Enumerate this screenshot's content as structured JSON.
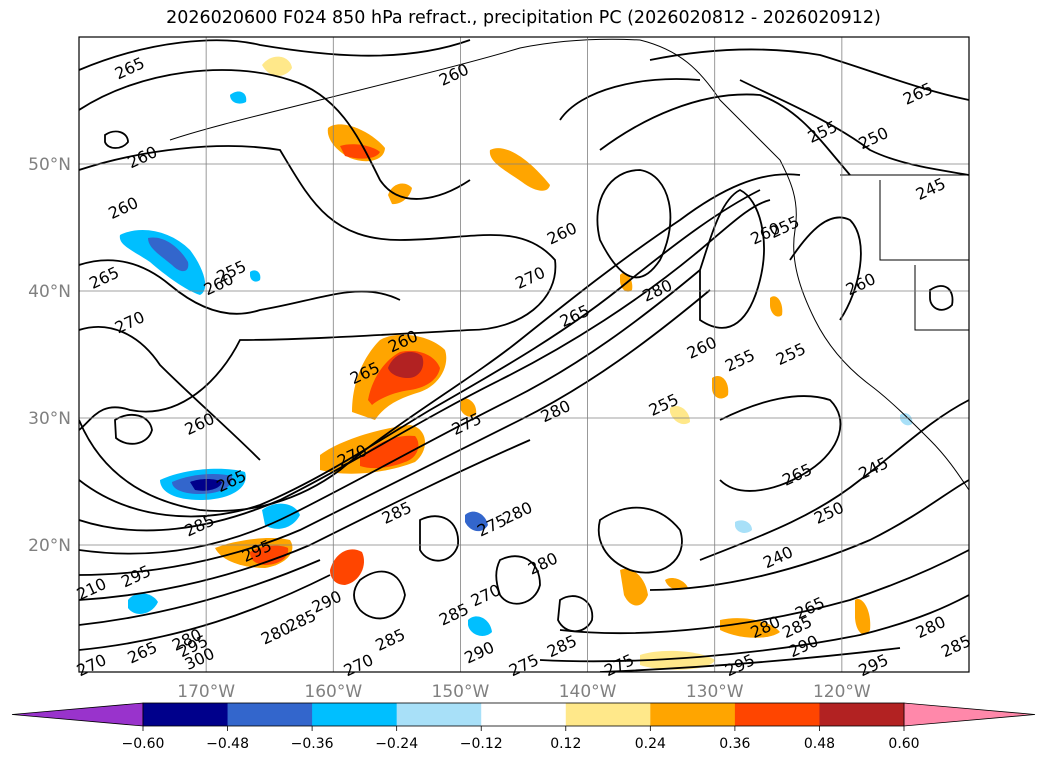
{
  "chart_data": {
    "type": "heatmap",
    "title": "2026020600 F024 850 hPa refract., precipitation PC (2026020812 - 2026020912)",
    "map": {
      "lon_range": [
        -180,
        -110
      ],
      "lat_range": [
        10,
        60
      ],
      "lon_ticks": [
        {
          "value": -170,
          "label": "170°W"
        },
        {
          "value": -160,
          "label": "160°W"
        },
        {
          "value": -150,
          "label": "150°W"
        },
        {
          "value": -140,
          "label": "140°W"
        },
        {
          "value": -130,
          "label": "130°W"
        },
        {
          "value": -120,
          "label": "120°W"
        }
      ],
      "lat_ticks": [
        {
          "value": 20,
          "label": "20°N"
        },
        {
          "value": 30,
          "label": "30°N"
        },
        {
          "value": 40,
          "label": "40°N"
        },
        {
          "value": 50,
          "label": "50°N"
        }
      ],
      "grid": true,
      "label_color": "#808080"
    },
    "colorbar": {
      "position": "bottom",
      "extend": "both",
      "levels": [
        -0.72,
        -0.6,
        -0.48,
        -0.36,
        -0.24,
        -0.12,
        0.12,
        0.24,
        0.36,
        0.48,
        0.6,
        0.72
      ],
      "colors": [
        "#9933cc",
        "#00008b",
        "#3366cc",
        "#00bfff",
        "#a8e0f8",
        "#ffffff",
        "#ffe88a",
        "#ffa500",
        "#ff4500",
        "#b22222",
        "#ff88aa"
      ],
      "tick_labels": [
        "−0.60",
        "−0.48",
        "−0.36",
        "−0.24",
        "−0.12",
        "0.12",
        "0.24",
        "0.36",
        "0.48",
        "0.60"
      ]
    },
    "contour_labels": [
      {
        "text": "265",
        "lon": -176.0,
        "lat": 57.5
      },
      {
        "text": "260",
        "lon": -150.5,
        "lat": 57.0
      },
      {
        "text": "265",
        "lon": -114.0,
        "lat": 55.5
      },
      {
        "text": "255",
        "lon": -121.5,
        "lat": 52.5
      },
      {
        "text": "250",
        "lon": -117.5,
        "lat": 52.0
      },
      {
        "text": "245",
        "lon": -113.0,
        "lat": 48.0
      },
      {
        "text": "260",
        "lon": -175.0,
        "lat": 50.5
      },
      {
        "text": "260",
        "lon": -176.5,
        "lat": 46.5
      },
      {
        "text": "255",
        "lon": -168.0,
        "lat": 41.5
      },
      {
        "text": "260",
        "lon": -169.0,
        "lat": 40.5
      },
      {
        "text": "265",
        "lon": -178.0,
        "lat": 41.0
      },
      {
        "text": "270",
        "lon": -176.0,
        "lat": 37.5
      },
      {
        "text": "260",
        "lon": -142.0,
        "lat": 44.5
      },
      {
        "text": "270",
        "lon": -144.5,
        "lat": 41.0
      },
      {
        "text": "265",
        "lon": -141.0,
        "lat": 38.0
      },
      {
        "text": "260",
        "lon": -126.0,
        "lat": 44.5
      },
      {
        "text": "280",
        "lon": -134.5,
        "lat": 40.0
      },
      {
        "text": "255",
        "lon": -124.5,
        "lat": 45.0
      },
      {
        "text": "260",
        "lon": -118.5,
        "lat": 40.5
      },
      {
        "text": "260",
        "lon": -131.0,
        "lat": 35.5
      },
      {
        "text": "255",
        "lon": -128.0,
        "lat": 34.5
      },
      {
        "text": "255",
        "lon": -124.0,
        "lat": 35.0
      },
      {
        "text": "260",
        "lon": -154.5,
        "lat": 36.0
      },
      {
        "text": "265",
        "lon": -157.5,
        "lat": 33.5
      },
      {
        "text": "275",
        "lon": -149.5,
        "lat": 29.5
      },
      {
        "text": "280",
        "lon": -142.5,
        "lat": 30.5
      },
      {
        "text": "255",
        "lon": -134.0,
        "lat": 31.0
      },
      {
        "text": "260",
        "lon": -170.5,
        "lat": 29.5
      },
      {
        "text": "270",
        "lon": -158.5,
        "lat": 27.0
      },
      {
        "text": "265",
        "lon": -168.0,
        "lat": 25.0
      },
      {
        "text": "265",
        "lon": -123.5,
        "lat": 25.5
      },
      {
        "text": "245",
        "lon": -117.5,
        "lat": 26.0
      },
      {
        "text": "285",
        "lon": -170.5,
        "lat": 21.5
      },
      {
        "text": "285",
        "lon": -155.0,
        "lat": 22.5
      },
      {
        "text": "275",
        "lon": -147.5,
        "lat": 21.5
      },
      {
        "text": "280",
        "lon": -145.5,
        "lat": 22.5
      },
      {
        "text": "250",
        "lon": -121.0,
        "lat": 22.5
      },
      {
        "text": "295",
        "lon": -166.0,
        "lat": 19.5
      },
      {
        "text": "295",
        "lon": -175.5,
        "lat": 17.5
      },
      {
        "text": "280",
        "lon": -143.5,
        "lat": 18.5
      },
      {
        "text": "240",
        "lon": -125.0,
        "lat": 19.0
      },
      {
        "text": "290",
        "lon": -160.5,
        "lat": 15.5
      },
      {
        "text": "285",
        "lon": -162.5,
        "lat": 14.0
      },
      {
        "text": "280",
        "lon": -164.5,
        "lat": 13.0
      },
      {
        "text": "285",
        "lon": -150.5,
        "lat": 14.5
      },
      {
        "text": "270",
        "lon": -148.0,
        "lat": 16.0
      },
      {
        "text": "265",
        "lon": -122.5,
        "lat": 15.0
      },
      {
        "text": "285",
        "lon": -155.5,
        "lat": 12.5
      },
      {
        "text": "285",
        "lon": -142.0,
        "lat": 12.0
      },
      {
        "text": "280",
        "lon": -126.0,
        "lat": 13.5
      },
      {
        "text": "285",
        "lon": -123.5,
        "lat": 13.5
      },
      {
        "text": "290",
        "lon": -123.0,
        "lat": 12.0
      },
      {
        "text": "290",
        "lon": -148.5,
        "lat": 11.5
      },
      {
        "text": "265",
        "lon": -175.0,
        "lat": 11.5
      },
      {
        "text": "280",
        "lon": -171.5,
        "lat": 12.5
      },
      {
        "text": "295",
        "lon": -171.0,
        "lat": 12.0
      },
      {
        "text": "300",
        "lon": -170.5,
        "lat": 11.0
      },
      {
        "text": "270",
        "lon": -179.0,
        "lat": 10.5
      },
      {
        "text": "275",
        "lon": -145.0,
        "lat": 10.5
      },
      {
        "text": "275",
        "lon": -137.5,
        "lat": 10.5
      },
      {
        "text": "270",
        "lon": -158.0,
        "lat": 10.5
      },
      {
        "text": "295",
        "lon": -128.0,
        "lat": 10.5
      },
      {
        "text": "295",
        "lon": -117.5,
        "lat": 10.5
      },
      {
        "text": "285",
        "lon": -111.0,
        "lat": 12.0
      },
      {
        "text": "280",
        "lon": -113.0,
        "lat": 13.5
      },
      {
        "text": "210",
        "lon": -179.0,
        "lat": 16.5
      }
    ]
  }
}
